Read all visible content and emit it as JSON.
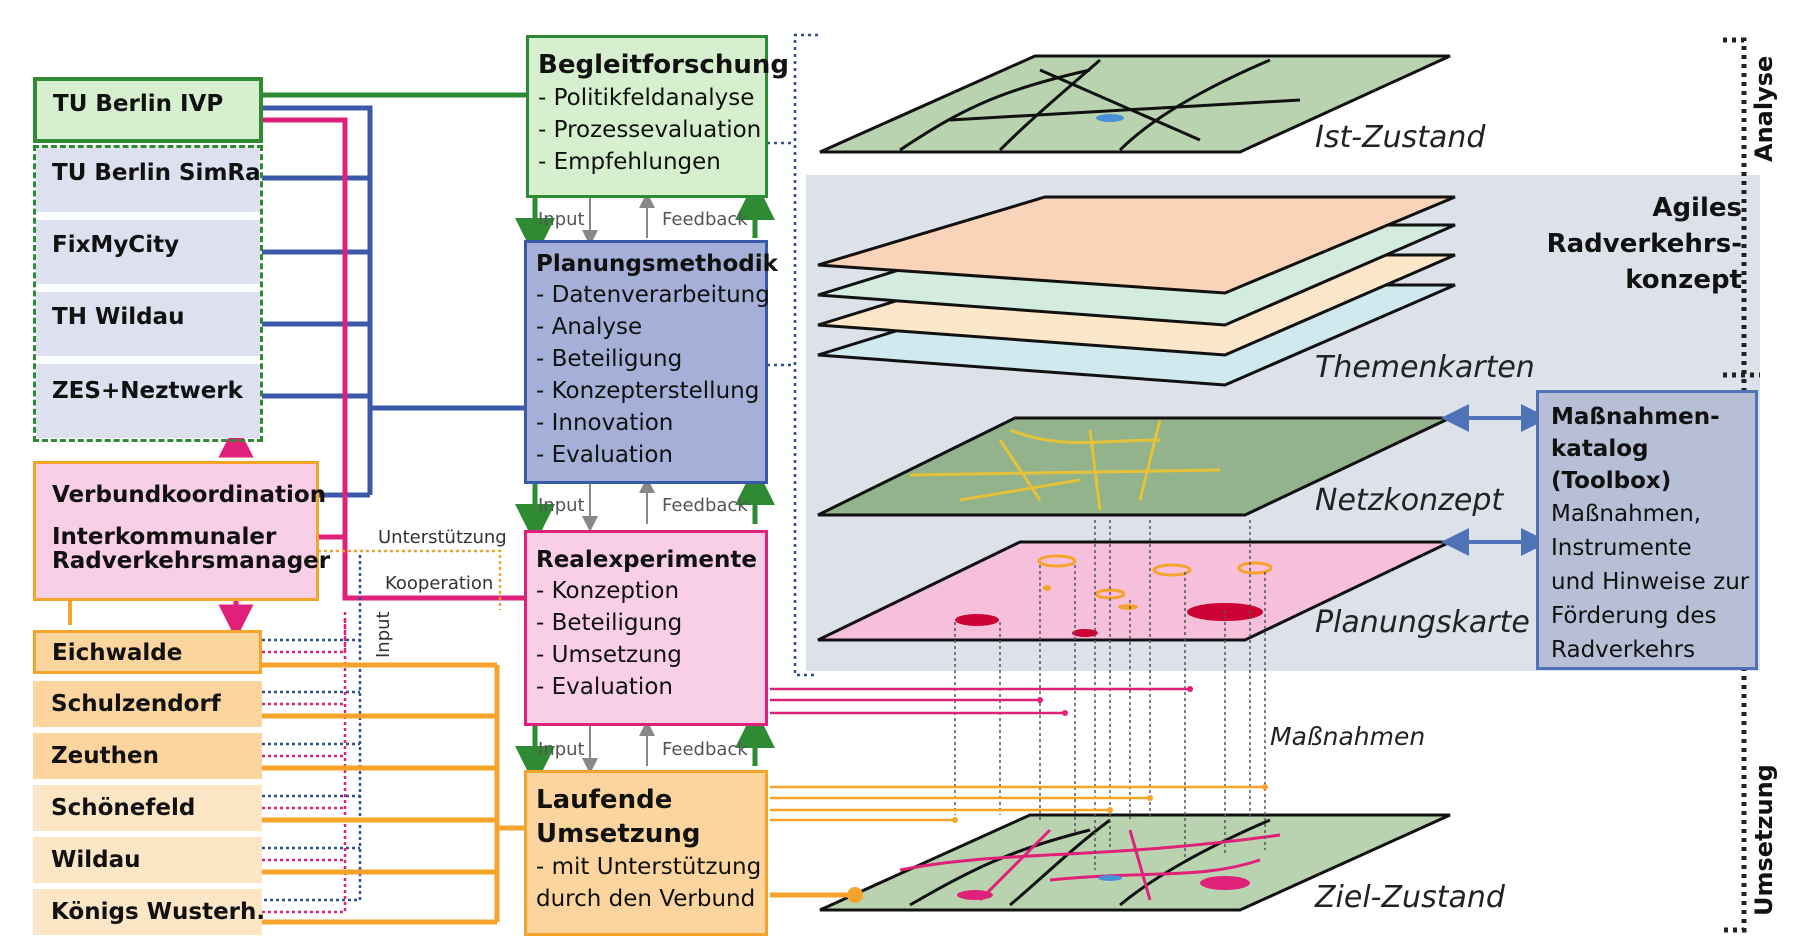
{
  "partners": {
    "lead": "TU Berlin IVP",
    "members": [
      "TU Berlin SimRa",
      "FixMyCity",
      "TH Wildau",
      "ZES+Neztwerk"
    ],
    "coordination_line1": "Verbundkoordination",
    "coordination_line2": "Interkommunaler",
    "coordination_line3": "Radverkehrsmanager"
  },
  "municipalities": [
    "Eichwalde",
    "Schulzendorf",
    "Zeuthen",
    "Schönefeld",
    "Wildau",
    "Königs Wusterh."
  ],
  "link_labels": {
    "support": "Unterstützung",
    "cooperation": "Kooperation",
    "input_vertical": "Input",
    "input": "Input",
    "feedback": "Feedback"
  },
  "stages": {
    "research": {
      "title": "Begleitforschung",
      "items": [
        "- Politikfeldanalyse",
        "- Prozessevaluation",
        "- Empfehlungen"
      ]
    },
    "method": {
      "title": "Planungsmethodik",
      "items": [
        "- Datenverarbeitung",
        "- Analyse",
        "- Beteiligung",
        "- Konzepterstellung",
        "- Innovation",
        "- Evaluation"
      ]
    },
    "experiments": {
      "title": "Realexperimente",
      "items": [
        "- Konzeption",
        "- Beteiligung",
        "- Umsetzung",
        "- Evaluation"
      ]
    },
    "implementation": {
      "title_line1": "Laufende",
      "title_line2": "Umsetzung",
      "items": [
        "- mit Unterstützung",
        "durch den Verbund"
      ]
    }
  },
  "layers": {
    "current": "Ist-Zustand",
    "thematic": "Themenkarten",
    "network": "Netzkonzept",
    "planning": "Planungskarte",
    "measures": "Maßnahmen",
    "target": "Ziel-Zustand"
  },
  "concept": {
    "line1": "Agiles",
    "line2": "Radverkehrs-",
    "line3": "konzept"
  },
  "catalog": {
    "title_lines": [
      "Maßnahmen-",
      "katalog",
      "(Toolbox)"
    ],
    "body_lines": [
      "Maßnahmen,",
      "Instrumente",
      "und Hinweise zur",
      "Förderung des",
      "Radverkehrs"
    ]
  },
  "phases": {
    "top": "Analyse",
    "bottom": "Umsetzung"
  },
  "colors": {
    "green": "#2e8b34",
    "blue": "#3a5aa8",
    "magenta": "#e0217a",
    "orange": "#f5a32a",
    "navy_dotted": "#2f4f8f",
    "green_fill": "#d6efcf",
    "lavender_fill": "#dde0ef",
    "pink_fill": "#f9cfe7",
    "orange_fill": "#fbd59d",
    "light_orange_fill": "#fde6c6",
    "panel_bg": "#dde1ea",
    "method_fill": "#a5b0d9"
  }
}
